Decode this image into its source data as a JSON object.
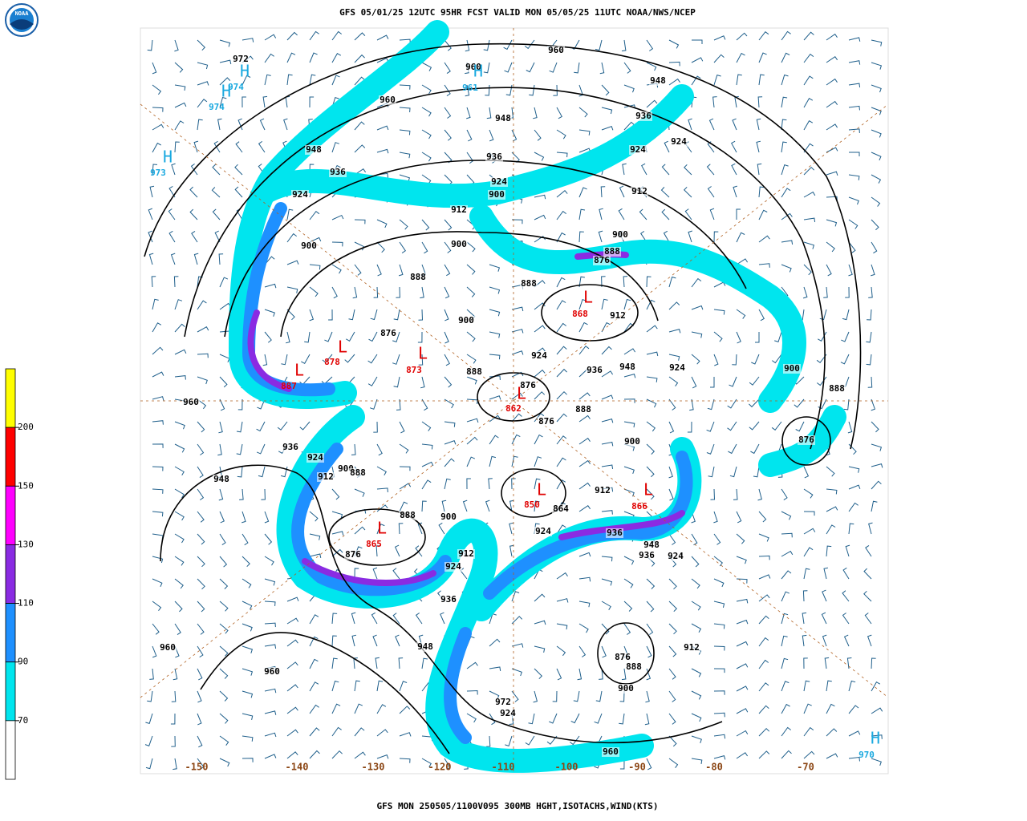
{
  "header": {
    "title": "GFS 05/01/25 12UTC 95HR FCST VALID MON 05/05/25 11UTC NOAA/NWS/NCEP"
  },
  "logo": {
    "label": "NOAA"
  },
  "footer": {
    "caption": "GFS MON 250505/1100V095 300MB HGHT,ISOTACHS,WIND(KTS)"
  },
  "colorbar": {
    "levels": [
      200,
      150,
      130,
      110,
      90,
      70
    ],
    "colors": [
      "#ffff00",
      "#ff0000",
      "#ff00ff",
      "#8a2be2",
      "#1e90ff",
      "#00e5ee",
      "#ffffff"
    ]
  },
  "longitude_labels": [
    "-150",
    "-140",
    "-130",
    "-120",
    "-110",
    "-100",
    "-90",
    "-80",
    "-70"
  ],
  "contour_labels": [
    972,
    960,
    948,
    936,
    924,
    912,
    900,
    900,
    888,
    876,
    900,
    888,
    960,
    936,
    924,
    912,
    900,
    888,
    948,
    876,
    888,
    900,
    912,
    924,
    936,
    948,
    960,
    960,
    972,
    924,
    960,
    960,
    948,
    936,
    924,
    900,
    960,
    948,
    936,
    924,
    924,
    912,
    900,
    888,
    876,
    888,
    912,
    924,
    936,
    948,
    924,
    900,
    888,
    876,
    888,
    900,
    912,
    924,
    936,
    948,
    936,
    924,
    912,
    900,
    888,
    876,
    864,
    876,
    876
  ],
  "lows": [
    {
      "symbol": "L",
      "value": 868
    },
    {
      "symbol": "L",
      "value": 878
    },
    {
      "symbol": "L",
      "value": 887
    },
    {
      "symbol": "L",
      "value": 873
    },
    {
      "symbol": "L",
      "value": 862
    },
    {
      "symbol": "L",
      "value": 850
    },
    {
      "symbol": "L",
      "value": 866
    },
    {
      "symbol": "L",
      "value": 865
    }
  ],
  "highs": [
    {
      "symbol": "H",
      "value": 974
    },
    {
      "symbol": "H",
      "value": 974
    },
    {
      "symbol": "H",
      "value": 973
    },
    {
      "symbol": "H",
      "value": 961
    },
    {
      "symbol": "H",
      "value": 970
    }
  ]
}
